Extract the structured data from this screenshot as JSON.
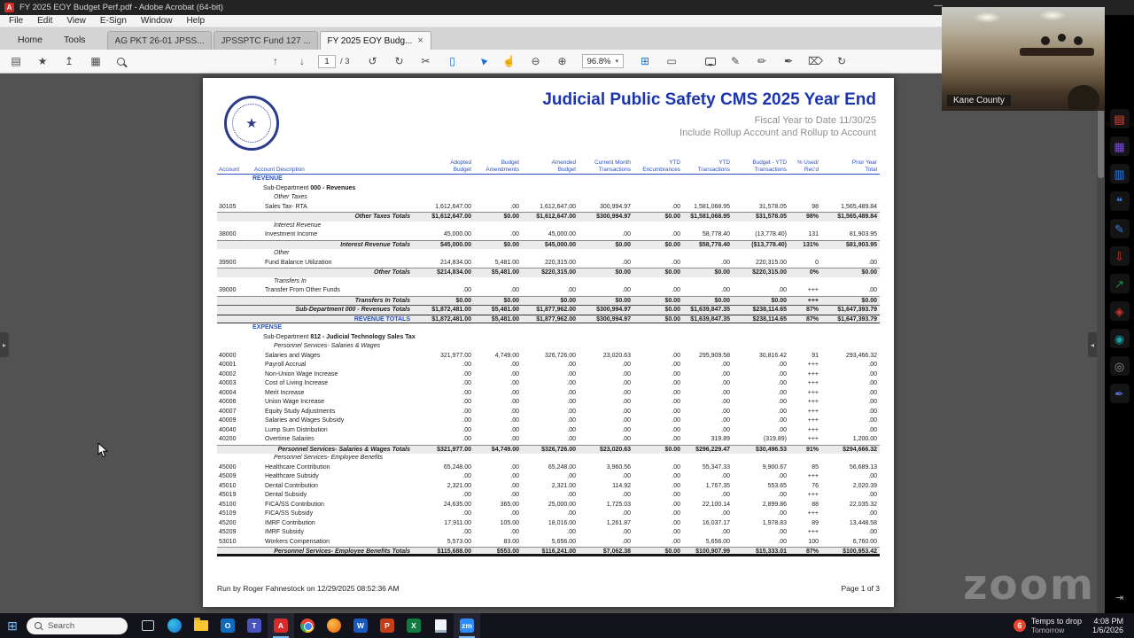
{
  "window": {
    "title": "FY 2025 EOY Budget Perf.pdf - Adobe Acrobat (64-bit)",
    "app_badge": "A",
    "minimize_glyph": "—",
    "menu": [
      "File",
      "Edit",
      "View",
      "E-Sign",
      "Window",
      "Help"
    ],
    "home_tab": "Home",
    "tools_tab": "Tools",
    "tab_close_glyph": "×",
    "doc_tabs": [
      {
        "label": "AG PKT 26-01 JPSS...",
        "active": false
      },
      {
        "label": "JPSSPTC Fund 127 ...",
        "active": false
      },
      {
        "label": "FY 2025 EOY Budg...",
        "active": true
      }
    ]
  },
  "toolbar": {
    "page_current": "1",
    "page_sep": "/ 3",
    "zoom_value": "96.8%"
  },
  "icons": {
    "save": "▤",
    "star": "★",
    "upload": "↥",
    "print": "▦",
    "page_up": "↑",
    "page_down": "↓",
    "undo": "↺",
    "redo": "↻",
    "crop": "✂",
    "page_view": "▯",
    "select": "▶",
    "hand": "☝",
    "zoom_out": "⊖",
    "zoom_in": "⊕",
    "caret": "▾",
    "grid": "⊞",
    "screen": "▭",
    "pencil": "✎",
    "highlight": "✏",
    "sign": "✒",
    "stamp": "◈",
    "trash": "⌦",
    "refresh": "↻",
    "handle_left": "▸",
    "handle_right": "◂"
  },
  "rail": {
    "expand_glyph": "⇥",
    "icons": [
      {
        "name": "create-pdf-icon",
        "glyph": "▤",
        "color": "#e8453c"
      },
      {
        "name": "combine-files-icon",
        "glyph": "▦",
        "color": "#7a4fd0"
      },
      {
        "name": "organize-pages-icon",
        "glyph": "▥",
        "color": "#2f7de1"
      },
      {
        "name": "comment-icon",
        "glyph": "❝",
        "color": "#2f7de1"
      },
      {
        "name": "edit-pdf-icon",
        "glyph": "✎",
        "color": "#3f7ad6"
      },
      {
        "name": "export-pdf-icon",
        "glyph": "⇩",
        "color": "#c9372c"
      },
      {
        "name": "share-arrow-icon",
        "glyph": "↗",
        "color": "#2e8b44"
      },
      {
        "name": "stamp-icon",
        "glyph": "◈",
        "color": "#c9372c"
      },
      {
        "name": "scan-ocr-icon",
        "glyph": "◉",
        "color": "#18a0a8"
      },
      {
        "name": "protect-icon",
        "glyph": "◎",
        "color": "#8a8f98"
      },
      {
        "name": "fill-sign-icon",
        "glyph": "✒",
        "color": "#5e6ad2"
      }
    ]
  },
  "report": {
    "title": "Judicial Public Safety CMS 2025 Year End",
    "subtitle1": "Fiscal Year to Date 11/30/25",
    "subtitle2": "Include Rollup Account and Rollup to Account",
    "seal_star": "★",
    "footer_left": "Run by Roger Fahnestock on 12/29/2025 08:52:36 AM",
    "footer_right": "Page 1 of 3",
    "columns": [
      {
        "l1": "",
        "l2": "Account"
      },
      {
        "l1": "",
        "l2": "Account Description"
      },
      {
        "l1": "Adopted",
        "l2": "Budget"
      },
      {
        "l1": "Budget",
        "l2": "Amendments"
      },
      {
        "l1": "Amended",
        "l2": "Budget"
      },
      {
        "l1": "Current Month",
        "l2": "Transactions"
      },
      {
        "l1": "YTD",
        "l2": "Encumbrances"
      },
      {
        "l1": "YTD",
        "l2": "Transactions"
      },
      {
        "l1": "Budget - YTD",
        "l2": "Transactions"
      },
      {
        "l1": "% Used/",
        "l2": "Rec'd"
      },
      {
        "l1": "Prior Year",
        "l2": "Total"
      }
    ],
    "rows": [
      {
        "t": "section",
        "label": "REVENUE"
      },
      {
        "t": "subdept",
        "pre": "Sub-Department",
        "bold": "000 - Revenues"
      },
      {
        "t": "cat",
        "label": "Other Taxes"
      },
      {
        "t": "row",
        "acct": "30105",
        "desc": "Sales Tax- RTA",
        "v": [
          "1,612,647.00",
          ".00",
          "1,612,647.00",
          "300,994.97",
          ".00",
          "1,581,068.95",
          "31,578.05",
          "98",
          "1,565,489.84"
        ]
      },
      {
        "t": "tot",
        "label": "Other Taxes Totals",
        "v": [
          "$1,612,647.00",
          "$0.00",
          "$1,612,647.00",
          "$300,994.97",
          "$0.00",
          "$1,581,068.95",
          "$31,578.05",
          "98%",
          "$1,565,489.84"
        ]
      },
      {
        "t": "cat",
        "label": "Interest Revenue"
      },
      {
        "t": "row",
        "acct": "38000",
        "desc": "Investment Income",
        "v": [
          "45,000.00",
          ".00",
          "45,000.00",
          ".00",
          ".00",
          "58,778.40",
          "(13,778.40)",
          "131",
          "81,903.95"
        ]
      },
      {
        "t": "tot",
        "label": "Interest Revenue Totals",
        "v": [
          "$45,000.00",
          "$0.00",
          "$45,000.00",
          "$0.00",
          "$0.00",
          "$58,778.40",
          "($13,778.40)",
          "131%",
          "$81,903.95"
        ]
      },
      {
        "t": "cat",
        "label": "Other"
      },
      {
        "t": "row",
        "acct": "39900",
        "desc": "Fund Balance Utilization",
        "v": [
          "214,834.00",
          "5,481.00",
          "220,315.00",
          ".00",
          ".00",
          ".00",
          "220,315.00",
          "0",
          ".00"
        ]
      },
      {
        "t": "tot",
        "label": "Other Totals",
        "v": [
          "$214,834.00",
          "$5,481.00",
          "$220,315.00",
          "$0.00",
          "$0.00",
          "$0.00",
          "$220,315.00",
          "0%",
          "$0.00"
        ]
      },
      {
        "t": "cat",
        "label": "Transfers In"
      },
      {
        "t": "row",
        "acct": "39000",
        "desc": "Transfer From Other Funds",
        "v": [
          ".00",
          ".00",
          ".00",
          ".00",
          ".00",
          ".00",
          ".00",
          "+++",
          ".00"
        ]
      },
      {
        "t": "tot",
        "label": "Transfers In Totals",
        "v": [
          "$0.00",
          "$0.00",
          "$0.00",
          "$0.00",
          "$0.00",
          "$0.00",
          "$0.00",
          "+++",
          "$0.00"
        ]
      },
      {
        "t": "subtot",
        "label": "Sub-Department  000 - Revenues Totals",
        "v": [
          "$1,872,481.00",
          "$5,481.00",
          "$1,877,962.00",
          "$300,994.97",
          "$0.00",
          "$1,639,847.35",
          "$238,114.65",
          "87%",
          "$1,647,393.79"
        ]
      },
      {
        "t": "grand",
        "label": "REVENUE TOTALS",
        "v": [
          "$1,872,481.00",
          "$5,481.00",
          "$1,877,962.00",
          "$300,994.97",
          "$0.00",
          "$1,639,847.35",
          "$238,114.65",
          "87%",
          "$1,647,393.79"
        ]
      },
      {
        "t": "section",
        "label": "EXPENSE"
      },
      {
        "t": "subdept",
        "pre": "Sub-Department",
        "bold": "812 - Judicial Technology Sales Tax"
      },
      {
        "t": "cat",
        "label": "Personnel Services- Salaries & Wages"
      },
      {
        "t": "row",
        "acct": "40000",
        "desc": "Salaries and Wages",
        "v": [
          "321,977.00",
          "4,749.00",
          "326,726.00",
          "23,020.63",
          ".00",
          "295,909.58",
          "30,816.42",
          "91",
          "293,466.32"
        ]
      },
      {
        "t": "row",
        "acct": "40001",
        "desc": "Payroll Accrual",
        "v": [
          ".00",
          ".00",
          ".00",
          ".00",
          ".00",
          ".00",
          ".00",
          "+++",
          ".00"
        ]
      },
      {
        "t": "row",
        "acct": "40002",
        "desc": "Non-Union Wage Increase",
        "v": [
          ".00",
          ".00",
          ".00",
          ".00",
          ".00",
          ".00",
          ".00",
          "+++",
          ".00"
        ]
      },
      {
        "t": "row",
        "acct": "40003",
        "desc": "Cost of Living Increase",
        "v": [
          ".00",
          ".00",
          ".00",
          ".00",
          ".00",
          ".00",
          ".00",
          "+++",
          ".00"
        ]
      },
      {
        "t": "row",
        "acct": "40004",
        "desc": "Merit Increase",
        "v": [
          ".00",
          ".00",
          ".00",
          ".00",
          ".00",
          ".00",
          ".00",
          "+++",
          ".00"
        ]
      },
      {
        "t": "row",
        "acct": "40006",
        "desc": "Union Wage Increase",
        "v": [
          ".00",
          ".00",
          ".00",
          ".00",
          ".00",
          ".00",
          ".00",
          "+++",
          ".00"
        ]
      },
      {
        "t": "row",
        "acct": "40007",
        "desc": "Equity Study Adjustments",
        "v": [
          ".00",
          ".00",
          ".00",
          ".00",
          ".00",
          ".00",
          ".00",
          "+++",
          ".00"
        ]
      },
      {
        "t": "row",
        "acct": "40009",
        "desc": "Salaries and Wages Subsidy",
        "v": [
          ".00",
          ".00",
          ".00",
          ".00",
          ".00",
          ".00",
          ".00",
          "+++",
          ".00"
        ]
      },
      {
        "t": "row",
        "acct": "40040",
        "desc": "Lump Sum Distribution",
        "v": [
          ".00",
          ".00",
          ".00",
          ".00",
          ".00",
          ".00",
          ".00",
          "+++",
          ".00"
        ]
      },
      {
        "t": "row",
        "acct": "40200",
        "desc": "Overtime Salaries",
        "v": [
          ".00",
          ".00",
          ".00",
          ".00",
          ".00",
          "319.89",
          "(319.89)",
          "+++",
          "1,200.00"
        ]
      },
      {
        "t": "tot",
        "label": "Personnel Services- Salaries & Wages Totals",
        "v": [
          "$321,977.00",
          "$4,749.00",
          "$326,726.00",
          "$23,020.63",
          "$0.00",
          "$296,229.47",
          "$30,496.53",
          "91%",
          "$294,666.32"
        ]
      },
      {
        "t": "cat",
        "label": "Personnel Services- Employee Benefits"
      },
      {
        "t": "row",
        "acct": "45000",
        "desc": "Healthcare Contribution",
        "v": [
          "65,248.00",
          ".00",
          "65,248.00",
          "3,960.56",
          ".00",
          "55,347.33",
          "9,900.67",
          "85",
          "56,689.13"
        ]
      },
      {
        "t": "row",
        "acct": "45009",
        "desc": "Healthcare Subsidy",
        "v": [
          ".00",
          ".00",
          ".00",
          ".00",
          ".00",
          ".00",
          ".00",
          "+++",
          ".00"
        ]
      },
      {
        "t": "row",
        "acct": "45010",
        "desc": "Dental Contribution",
        "v": [
          "2,321.00",
          ".00",
          "2,321.00",
          "114.92",
          ".00",
          "1,767.35",
          "553.65",
          "76",
          "2,020.39"
        ]
      },
      {
        "t": "row",
        "acct": "45019",
        "desc": "Dental Subsidy",
        "v": [
          ".00",
          ".00",
          ".00",
          ".00",
          ".00",
          ".00",
          ".00",
          "+++",
          ".00"
        ]
      },
      {
        "t": "row",
        "acct": "45100",
        "desc": "FICA/SS Contribution",
        "v": [
          "24,635.00",
          "365.00",
          "25,000.00",
          "1,725.03",
          ".00",
          "22,100.14",
          "2,899.86",
          "88",
          "22,035.32"
        ]
      },
      {
        "t": "row",
        "acct": "45109",
        "desc": "FICA/SS Subsidy",
        "v": [
          ".00",
          ".00",
          ".00",
          ".00",
          ".00",
          ".00",
          ".00",
          "+++",
          ".00"
        ]
      },
      {
        "t": "row",
        "acct": "45200",
        "desc": "IMRF Contribution",
        "v": [
          "17,911.00",
          "105.00",
          "18,016.00",
          "1,261.87",
          ".00",
          "16,037.17",
          "1,978.83",
          "89",
          "13,448.58"
        ]
      },
      {
        "t": "row",
        "acct": "45209",
        "desc": "IMRF Subsidy",
        "v": [
          ".00",
          ".00",
          ".00",
          ".00",
          ".00",
          ".00",
          ".00",
          "+++",
          ".00"
        ]
      },
      {
        "t": "row",
        "acct": "53010",
        "desc": "Workers Compensation",
        "v": [
          "5,573.00",
          "83.00",
          "5,656.00",
          ".00",
          ".00",
          "5,656.00",
          ".00",
          "100",
          "6,760.00"
        ]
      },
      {
        "t": "tot",
        "thick": true,
        "label": "Personnel Services- Employee Benefits Totals",
        "v": [
          "$115,688.00",
          "$553.00",
          "$116,241.00",
          "$7,062.38",
          "$0.00",
          "$100,907.99",
          "$15,333.01",
          "87%",
          "$100,953.42"
        ]
      }
    ]
  },
  "video": {
    "label": "Kane County"
  },
  "watermark": "zoom",
  "taskbar": {
    "start_glyph": "⊞",
    "search_label": "Search",
    "apps": [
      {
        "name": "task-view-icon",
        "kind": "taskview"
      },
      {
        "name": "edge-icon",
        "kind": "disc",
        "color1": "#35c1e8",
        "color2": "#1b6fd0"
      },
      {
        "name": "file-explorer-icon",
        "kind": "folder"
      },
      {
        "name": "outlook-icon",
        "kind": "badge",
        "label": "O",
        "color": "#0f6cbd"
      },
      {
        "name": "teams-icon",
        "kind": "badge",
        "label": "T",
        "color": "#4b53bc"
      },
      {
        "name": "acrobat-icon",
        "kind": "badge",
        "label": "A",
        "color": "#d92b2b",
        "open": true
      },
      {
        "name": "chrome-icon",
        "kind": "chrome"
      },
      {
        "name": "firefox-icon",
        "kind": "disc",
        "color1": "#ffbd4f",
        "color2": "#e66000"
      },
      {
        "name": "word-icon",
        "kind": "badge",
        "label": "W",
        "color": "#185abd"
      },
      {
        "name": "powerpoint-icon",
        "kind": "badge",
        "label": "P",
        "color": "#c43e1c"
      },
      {
        "name": "excel-icon",
        "kind": "badge",
        "label": "X",
        "color": "#107c41"
      },
      {
        "name": "notepad-icon",
        "kind": "notepad"
      },
      {
        "name": "zoom-icon",
        "kind": "badge",
        "label": "zm",
        "color": "#2d8cff",
        "open": true
      }
    ],
    "tray": {
      "badge": "6",
      "weather_line1": "Temps to drop",
      "weather_line2": "Tomorrow",
      "time": "4:08 PM",
      "date": "1/6/2026"
    }
  }
}
